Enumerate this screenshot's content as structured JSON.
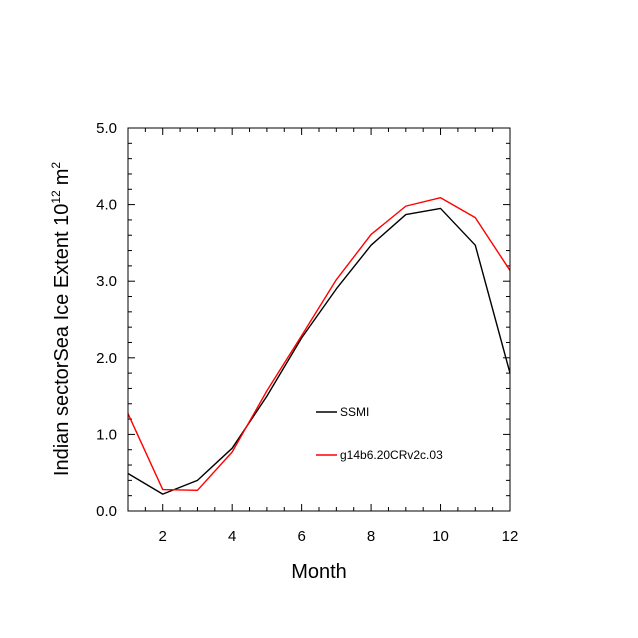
{
  "chart_data": {
    "type": "line",
    "xlabel": "Month",
    "ylabel": {
      "prefix": "Indian sectorSea Ice Extent 10",
      "exponent": "12",
      "unit": "m",
      "unit_exponent": "2"
    },
    "xlim": [
      1,
      12
    ],
    "ylim": [
      0,
      5
    ],
    "x_ticks": [
      2,
      4,
      6,
      8,
      10,
      12
    ],
    "x_tick_labels": [
      "2",
      "4",
      "6",
      "8",
      "10",
      "12"
    ],
    "y_ticks": [
      0,
      1,
      2,
      3,
      4,
      5
    ],
    "y_tick_labels": [
      "0.0",
      "1.0",
      "2.0",
      "3.0",
      "4.0",
      "5.0"
    ],
    "grid": false,
    "legend_position": "center-right",
    "x": [
      1,
      2,
      3,
      4,
      5,
      6,
      7,
      8,
      9,
      10,
      11,
      12
    ],
    "series": [
      {
        "name": "SSMI",
        "color": "#000000",
        "values": [
          0.49,
          0.22,
          0.4,
          0.82,
          1.5,
          2.26,
          2.9,
          3.47,
          3.87,
          3.95,
          3.47,
          1.8
        ]
      },
      {
        "name": "g14b6.20CRv2c.03",
        "color": "#ff0000",
        "values": [
          1.27,
          0.28,
          0.27,
          0.77,
          1.57,
          2.29,
          3.02,
          3.61,
          3.98,
          4.09,
          3.83,
          3.14
        ]
      }
    ]
  }
}
